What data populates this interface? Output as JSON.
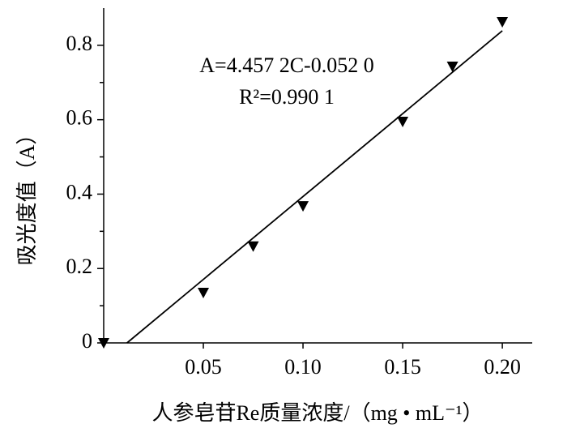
{
  "chart_data": {
    "type": "scatter",
    "x": [
      0,
      0.05,
      0.075,
      0.1,
      0.15,
      0.175,
      0.2
    ],
    "values": [
      0,
      0.135,
      0.26,
      0.368,
      0.595,
      0.743,
      0.863
    ],
    "color": "#000000",
    "fit_line": {
      "x": [
        0.0117,
        0.2
      ],
      "values": [
        0,
        0.839
      ]
    },
    "annotations": [
      "A=4.457 2C-0.052 0",
      "R²=0.990 1"
    ],
    "xlabel": "人参皂苷Re质量浓度/（mg • mL⁻¹）",
    "ylabel": "吸光度值（A）",
    "xlim": [
      0,
      0.215
    ],
    "ylim": [
      0,
      0.9
    ],
    "xticks": [
      0.05,
      {
        "value": 0.1,
        "label": "0.10"
      },
      0.15,
      {
        "value": 0.2,
        "label": "0.20"
      }
    ],
    "yticks": [
      0,
      0.2,
      0.4,
      0.6,
      0.8
    ],
    "yminor_ticks": [
      0.1,
      0.3,
      0.5,
      0.7
    ]
  }
}
